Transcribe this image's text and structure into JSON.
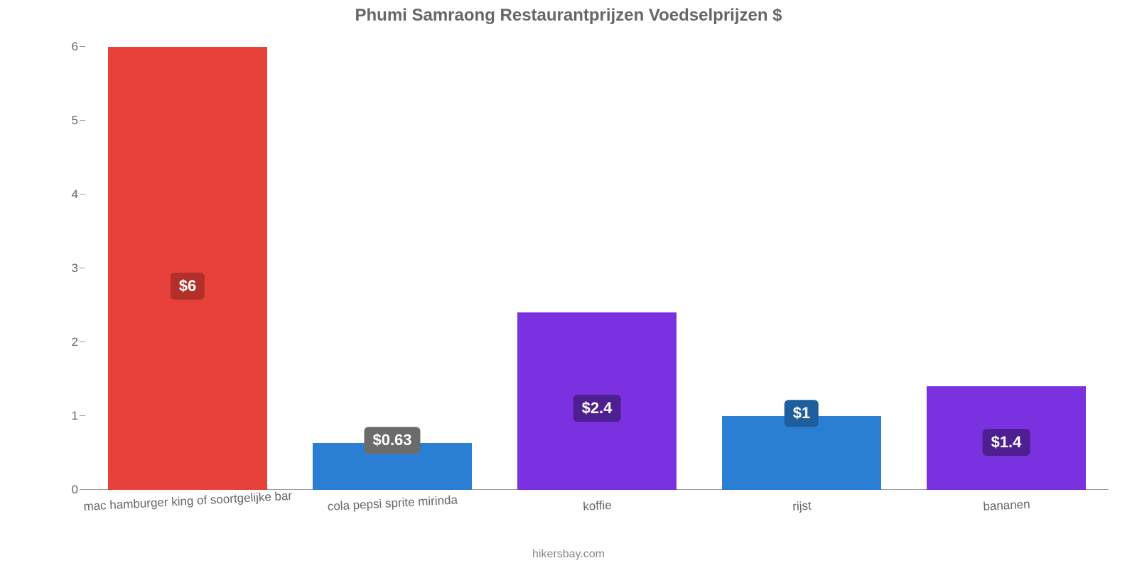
{
  "chart": {
    "type": "bar",
    "title": "Phumi Samraong Restaurantprijzen Voedselprijzen $",
    "title_color": "#666666",
    "title_fontsize": 24,
    "background_color": "#ffffff",
    "axis_color": "#999999",
    "tick_label_color": "#666666",
    "tick_label_fontsize": 17,
    "xlabel_fontsize": 17,
    "xlabel_color": "#666666",
    "xlabel_rotation_deg": -3,
    "ylim": [
      0,
      6.15
    ],
    "yticks": [
      0,
      1,
      2,
      3,
      4,
      5,
      6
    ],
    "bar_width_pct": 78,
    "value_label_fontsize": 22,
    "value_label_text_color": "#ffffff",
    "value_label_radius": 6,
    "attribution": "hikersbay.com",
    "attribution_color": "#888888",
    "attribution_fontsize": 16,
    "categories": [
      "mac hamburger king of soortgelijke bar",
      "cola pepsi sprite mirinda",
      "koffie",
      "rijst",
      "bananen"
    ],
    "values": [
      6,
      0.63,
      2.4,
      1,
      1.4
    ],
    "value_labels": [
      "$6",
      "$0.63",
      "$2.4",
      "$1",
      "$1.4"
    ],
    "bar_colors": [
      "#e8403a",
      "#2a7fd4",
      "#7a32e0",
      "#2a7fd4",
      "#7a32e0"
    ],
    "value_badge_colors": [
      "#b32f2a",
      "#6b6b6b",
      "#4d1f91",
      "#1f5e9c",
      "#4d1f91"
    ]
  }
}
